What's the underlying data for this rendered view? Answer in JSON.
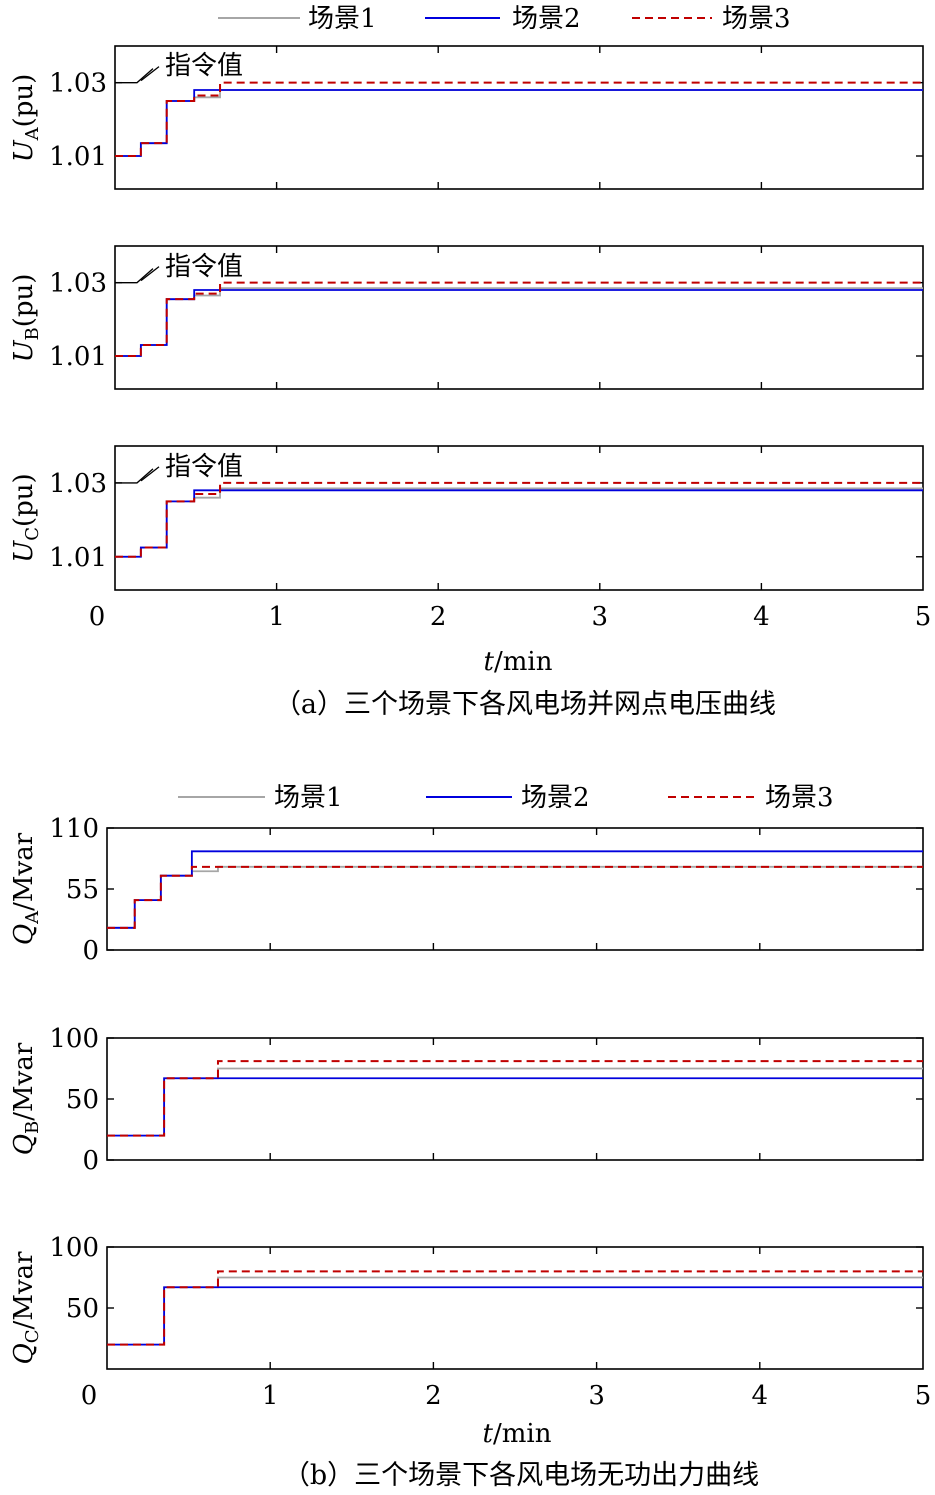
{
  "legend": {
    "s1": "场景1",
    "s2": "场景2",
    "s3": "场景3",
    "color_s1": "#a6a6a6",
    "color_s2": "#0000dd",
    "color_s3": "#c00000"
  },
  "axis_common": {
    "xlabel_t": "t",
    "xlabel_unit": "/min",
    "xticks": [
      "0",
      "1",
      "2",
      "3",
      "4",
      "5"
    ]
  },
  "captions": {
    "a": "（a）三个场景下各风电场并网点电压曲线",
    "b": "（b）三个场景下各风电场无功出力曲线"
  },
  "chart_data": [
    {
      "type": "line",
      "ylabel_main": "U",
      "ylabel_sub": "A",
      "ylabel_unit": "(pu)",
      "xlim": [
        0,
        5
      ],
      "ylim": [
        1.001,
        1.04
      ],
      "yticks": [
        "1.01",
        "1.03"
      ],
      "ytick_values": [
        1.01,
        1.03
      ],
      "reference_label": "指令值",
      "reference_value": 1.03,
      "series": [
        {
          "name": "场景1",
          "steps": [
            [
              0,
              1.01
            ],
            [
              0.16,
              1.0135
            ],
            [
              0.32,
              1.025
            ],
            [
              0.49,
              1.026
            ],
            [
              0.65,
              1.028
            ],
            [
              5,
              1.028
            ]
          ]
        },
        {
          "name": "场景2",
          "steps": [
            [
              0,
              1.01
            ],
            [
              0.16,
              1.0135
            ],
            [
              0.32,
              1.025
            ],
            [
              0.49,
              1.028
            ],
            [
              5,
              1.028
            ]
          ]
        },
        {
          "name": "场景3",
          "steps": [
            [
              0,
              1.01
            ],
            [
              0.16,
              1.0135
            ],
            [
              0.32,
              1.025
            ],
            [
              0.49,
              1.0265
            ],
            [
              0.65,
              1.03
            ],
            [
              5,
              1.03
            ]
          ]
        }
      ]
    },
    {
      "type": "line",
      "ylabel_main": "U",
      "ylabel_sub": "B",
      "ylabel_unit": "(pu)",
      "xlim": [
        0,
        5
      ],
      "ylim": [
        1.001,
        1.04
      ],
      "yticks": [
        "1.01",
        "1.03"
      ],
      "ytick_values": [
        1.01,
        1.03
      ],
      "reference_label": "指令值",
      "reference_value": 1.03,
      "series": [
        {
          "name": "场景1",
          "steps": [
            [
              0,
              1.01
            ],
            [
              0.16,
              1.013
            ],
            [
              0.32,
              1.0255
            ],
            [
              0.49,
              1.0265
            ],
            [
              0.65,
              1.0285
            ],
            [
              5,
              1.0285
            ]
          ]
        },
        {
          "name": "场景2",
          "steps": [
            [
              0,
              1.01
            ],
            [
              0.16,
              1.013
            ],
            [
              0.32,
              1.0255
            ],
            [
              0.49,
              1.028
            ],
            [
              5,
              1.028
            ]
          ]
        },
        {
          "name": "场景3",
          "steps": [
            [
              0,
              1.01
            ],
            [
              0.16,
              1.013
            ],
            [
              0.32,
              1.0255
            ],
            [
              0.49,
              1.027
            ],
            [
              0.65,
              1.03
            ],
            [
              5,
              1.03
            ]
          ]
        }
      ]
    },
    {
      "type": "line",
      "ylabel_main": "U",
      "ylabel_sub": "C",
      "ylabel_unit": "(pu)",
      "xlim": [
        0,
        5
      ],
      "ylim": [
        1.001,
        1.04
      ],
      "yticks": [
        "1.01",
        "1.03"
      ],
      "ytick_values": [
        1.01,
        1.03
      ],
      "reference_label": "指令值",
      "reference_value": 1.03,
      "series": [
        {
          "name": "场景1",
          "steps": [
            [
              0,
              1.01
            ],
            [
              0.16,
              1.0125
            ],
            [
              0.32,
              1.025
            ],
            [
              0.49,
              1.026
            ],
            [
              0.65,
              1.0285
            ],
            [
              5,
              1.0285
            ]
          ]
        },
        {
          "name": "场景2",
          "steps": [
            [
              0,
              1.01
            ],
            [
              0.16,
              1.0125
            ],
            [
              0.32,
              1.025
            ],
            [
              0.49,
              1.028
            ],
            [
              5,
              1.028
            ]
          ]
        },
        {
          "name": "场景3",
          "steps": [
            [
              0,
              1.01
            ],
            [
              0.16,
              1.0125
            ],
            [
              0.32,
              1.025
            ],
            [
              0.49,
              1.027
            ],
            [
              0.65,
              1.03
            ],
            [
              5,
              1.03
            ]
          ]
        }
      ]
    },
    {
      "type": "line",
      "ylabel_main": "Q",
      "ylabel_sub": "A",
      "ylabel_unit": "/Mvar",
      "xlim": [
        0,
        5
      ],
      "ylim": [
        0,
        110
      ],
      "yticks": [
        "0",
        "55",
        "110"
      ],
      "ytick_values": [
        0,
        55,
        110
      ],
      "series": [
        {
          "name": "场景1",
          "steps": [
            [
              0,
              20
            ],
            [
              0.17,
              45
            ],
            [
              0.33,
              67
            ],
            [
              0.52,
              71
            ],
            [
              0.68,
              75
            ],
            [
              5,
              75
            ]
          ]
        },
        {
          "name": "场景2",
          "steps": [
            [
              0,
              20
            ],
            [
              0.17,
              45
            ],
            [
              0.33,
              67
            ],
            [
              0.52,
              89
            ],
            [
              5,
              89
            ]
          ]
        },
        {
          "name": "场景3",
          "steps": [
            [
              0,
              20
            ],
            [
              0.17,
              45
            ],
            [
              0.33,
              67
            ],
            [
              0.52,
              75
            ],
            [
              5,
              75
            ]
          ]
        }
      ]
    },
    {
      "type": "line",
      "ylabel_main": "Q",
      "ylabel_sub": "B",
      "ylabel_unit": "/Mvar",
      "xlim": [
        0,
        5
      ],
      "ylim": [
        0,
        100
      ],
      "yticks": [
        "0",
        "50",
        "100"
      ],
      "ytick_values": [
        0,
        50,
        100
      ],
      "series": [
        {
          "name": "场景1",
          "steps": [
            [
              0,
              20
            ],
            [
              0.35,
              67
            ],
            [
              0.68,
              75
            ],
            [
              5,
              75
            ]
          ]
        },
        {
          "name": "场景2",
          "steps": [
            [
              0,
              20
            ],
            [
              0.35,
              67
            ],
            [
              5,
              67
            ]
          ]
        },
        {
          "name": "场景3",
          "steps": [
            [
              0,
              20
            ],
            [
              0.35,
              67
            ],
            [
              0.68,
              81
            ],
            [
              5,
              81
            ]
          ]
        }
      ]
    },
    {
      "type": "line",
      "ylabel_main": "Q",
      "ylabel_sub": "C",
      "ylabel_unit": "/Mvar",
      "xlim": [
        0,
        5
      ],
      "ylim": [
        0,
        100
      ],
      "yticks": [
        "50",
        "100"
      ],
      "ytick_values": [
        50,
        100
      ],
      "series": [
        {
          "name": "场景1",
          "steps": [
            [
              0,
              20
            ],
            [
              0.35,
              67
            ],
            [
              0.68,
              75
            ],
            [
              5,
              75
            ]
          ]
        },
        {
          "name": "场景2",
          "steps": [
            [
              0,
              20
            ],
            [
              0.35,
              67
            ],
            [
              5,
              67
            ]
          ]
        },
        {
          "name": "场景3",
          "steps": [
            [
              0,
              20
            ],
            [
              0.35,
              67
            ],
            [
              0.68,
              80
            ],
            [
              5,
              80
            ]
          ]
        }
      ]
    }
  ]
}
